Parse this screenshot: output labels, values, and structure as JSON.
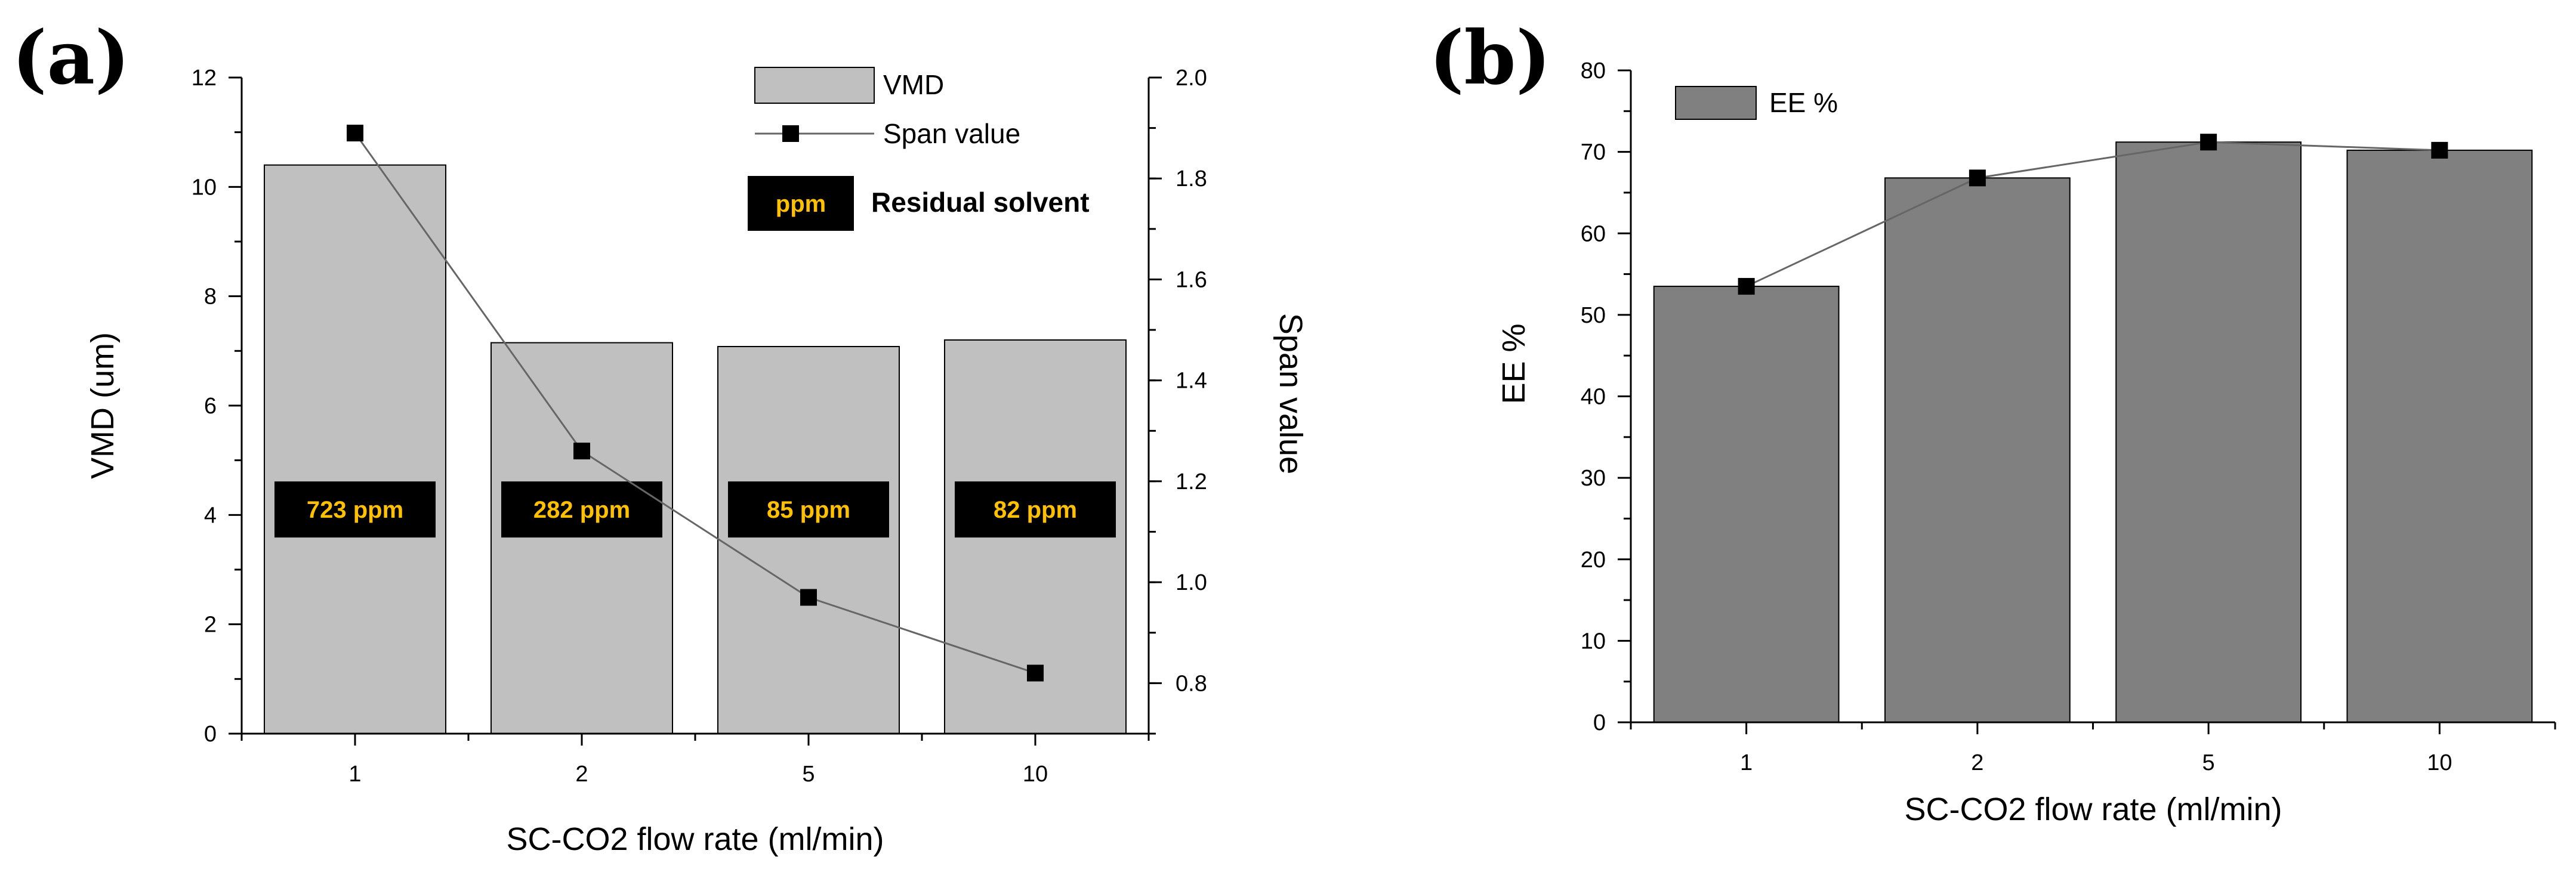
{
  "panel_labels": {
    "a": "(a)",
    "b": "(b)"
  },
  "colors": {
    "vmd_bar": "#c0c0c0",
    "ee_bar": "#808080",
    "span_line": "#666666",
    "ppm_box": "#000000",
    "ppm_text": "#ffc000"
  },
  "chart_data": [
    {
      "type": "bar",
      "panel": "(a)",
      "title": "",
      "categories": [
        "1",
        "2",
        "5",
        "10"
      ],
      "xlabel": "SC-CO2 flow rate (ml/min)",
      "ylabel": "VMD (um)",
      "y2label": "Span value",
      "ylim": [
        0,
        12
      ],
      "y2lim": [
        0.7,
        2.0
      ],
      "yticks": [
        0,
        2,
        4,
        6,
        8,
        10,
        12
      ],
      "y2ticks": [
        "0.8",
        "1.0",
        "1.2",
        "1.4",
        "1.6",
        "1.8",
        "2.0"
      ],
      "series": [
        {
          "name": "VMD",
          "type": "bar",
          "axis": "left",
          "values": [
            10.4,
            7.15,
            7.08,
            7.2
          ]
        },
        {
          "name": "Span value",
          "type": "line",
          "axis": "right",
          "values": [
            1.89,
            1.26,
            0.97,
            0.82
          ]
        }
      ],
      "annotations": [
        "723 ppm",
        "282 ppm",
        "85 ppm",
        "82 ppm"
      ],
      "legend": {
        "position": "top-right",
        "items": [
          "VMD",
          "Span value"
        ],
        "ppm_box": "ppm",
        "ppm_label": "Residual solvent"
      },
      "grid": false
    },
    {
      "type": "bar",
      "panel": "(b)",
      "title": "",
      "categories": [
        "1",
        "2",
        "5",
        "10"
      ],
      "xlabel": "SC-CO2 flow rate (ml/min)",
      "ylabel": "EE %",
      "ylim": [
        0,
        80
      ],
      "yticks": [
        0,
        10,
        20,
        30,
        40,
        50,
        60,
        70,
        80
      ],
      "series": [
        {
          "name": "EE %",
          "type": "bar",
          "values": [
            53.5,
            66.8,
            71.2,
            70.2
          ]
        },
        {
          "type": "line",
          "values": [
            53.5,
            66.8,
            71.2,
            70.2
          ]
        }
      ],
      "legend": {
        "position": "top-left",
        "items": [
          "EE %"
        ]
      },
      "grid": false
    }
  ]
}
